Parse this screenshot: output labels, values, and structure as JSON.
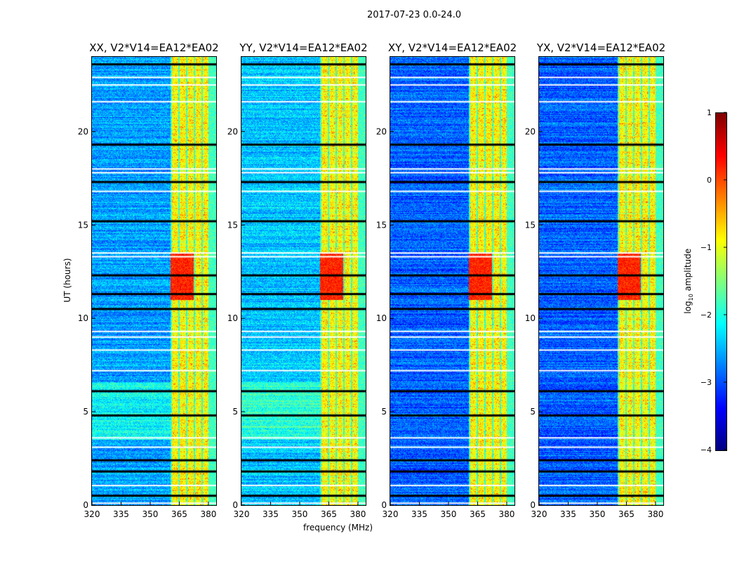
{
  "chart_data": {
    "type": "heatmap",
    "title": "2017-07-23 0.0-24.0",
    "xlabel": "frequency (MHz)",
    "ylabel": "UT (hours)",
    "xlim": [
      320,
      384
    ],
    "ylim": [
      0,
      24
    ],
    "xticks": [
      "320",
      "335",
      "350",
      "365",
      "380"
    ],
    "xtick_values": [
      320,
      335,
      350,
      365,
      380
    ],
    "yticks": [
      "0",
      "5",
      "10",
      "15",
      "20"
    ],
    "ytick_values": [
      0,
      5,
      10,
      15,
      20
    ],
    "panels": [
      {
        "title": "XX, V2*V14=EA12*EA02",
        "background_level": -2.6
      },
      {
        "title": "YY, V2*V14=EA12*EA02",
        "background_level": -2.4
      },
      {
        "title": "XY, V2*V14=EA12*EA02",
        "background_level": -2.9
      },
      {
        "title": "YX, V2*V14=EA12*EA02",
        "background_level": -2.9
      }
    ],
    "bright_band_mhz": [
      360.4,
      380
    ],
    "bright_band_level": -0.9,
    "peak_hours": [
      11,
      13.5
    ],
    "peak_level": 0.2,
    "flagged_black_hours": [
      0.5,
      1.8,
      2.4,
      4.8,
      6.1,
      10.5,
      11.3,
      12.3,
      15.2,
      17.3,
      19.3,
      23.6
    ],
    "flagged_white_hours": [
      0.1,
      1.05,
      3.1,
      3.6,
      7.2,
      8.3,
      9.0,
      9.3,
      13.3,
      13.5,
      16.8,
      17.8,
      18.0,
      21.6,
      22.5,
      22.9
    ],
    "colorbar": {
      "label": "log10 amplitude",
      "label_main": "log",
      "label_sub": "10",
      "label_rest": " amplitude",
      "range": [
        -4,
        1
      ],
      "ticks": [
        "1",
        "0",
        "−1",
        "−2",
        "−3",
        "−4"
      ],
      "tick_values": [
        1,
        0,
        -1,
        -2,
        -3,
        -4
      ],
      "colormap": "jet"
    }
  }
}
